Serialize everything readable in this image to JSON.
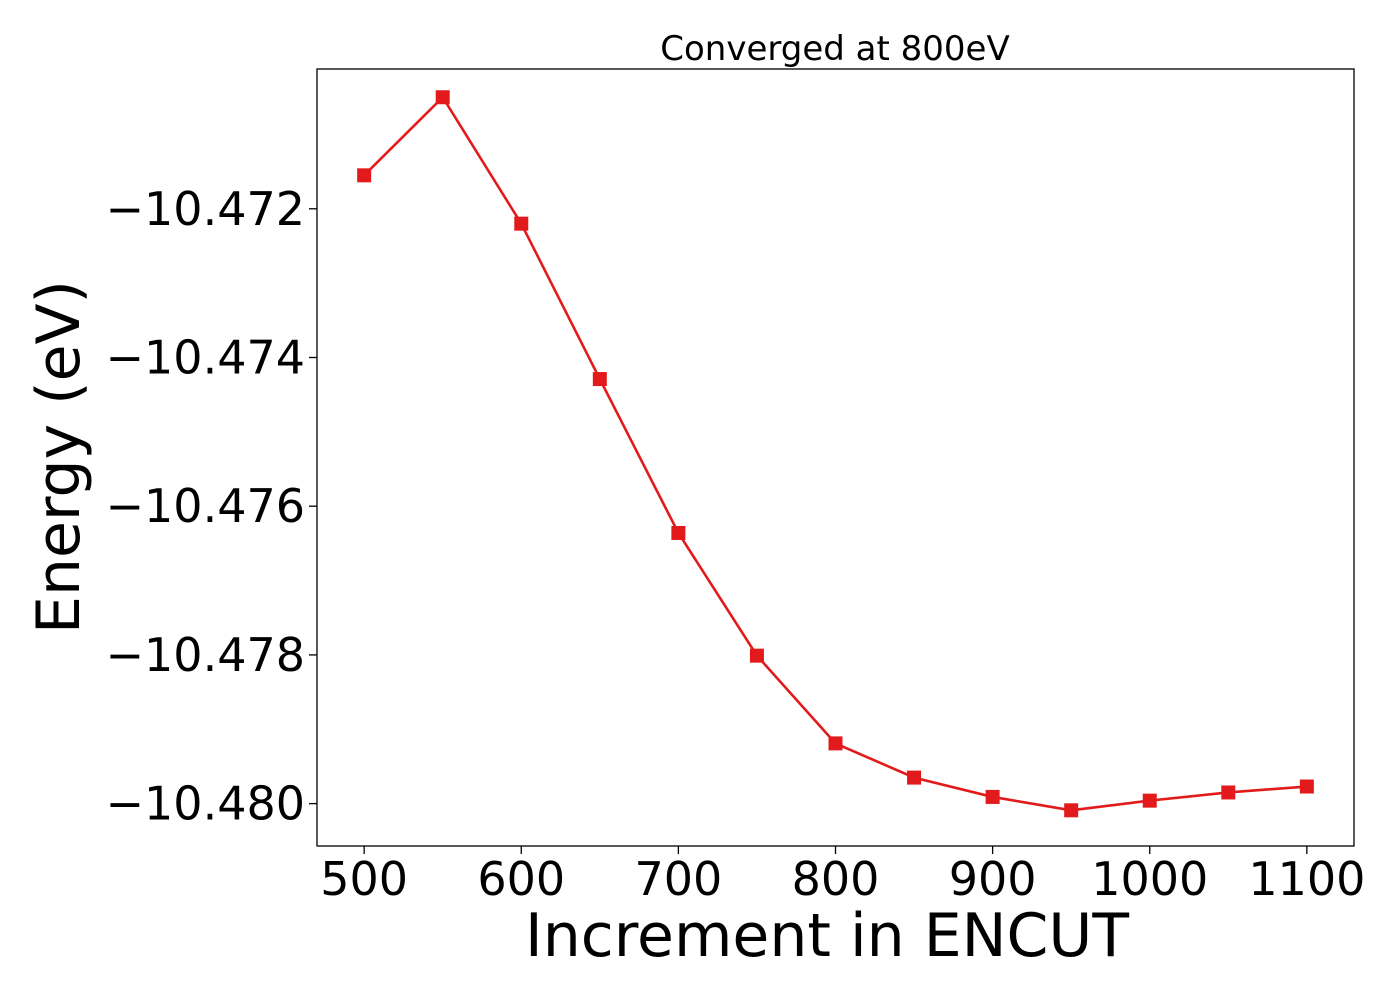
{
  "chart_data": {
    "type": "line",
    "title": "Converged at 800eV",
    "xlabel": "Increment in ENCUT",
    "ylabel": "Energy (eV)",
    "xlim": [
      470,
      1130
    ],
    "ylim": [
      -10.48057,
      -10.47012
    ],
    "x_ticks": [
      500,
      600,
      700,
      800,
      900,
      1000,
      1100
    ],
    "x_tick_labels": [
      "500",
      "600",
      "700",
      "800",
      "900",
      "1000",
      "1100"
    ],
    "y_ticks": [
      -10.472,
      -10.474,
      -10.476,
      -10.478,
      -10.48
    ],
    "y_tick_labels": [
      "−10.472",
      "−10.474",
      "−10.476",
      "−10.478",
      "−10.480"
    ],
    "grid": false,
    "series": [
      {
        "color": "#e31a1c",
        "marker": "square",
        "x": [
          500,
          550,
          600,
          650,
          700,
          750,
          800,
          850,
          900,
          950,
          1000,
          1050,
          1100
        ],
        "y": [
          -10.47155,
          -10.4705,
          -10.4722,
          -10.47429,
          -10.47636,
          -10.47801,
          -10.47919,
          -10.47965,
          -10.47991,
          -10.48009,
          -10.47996,
          -10.47985,
          -10.47977
        ]
      }
    ]
  }
}
